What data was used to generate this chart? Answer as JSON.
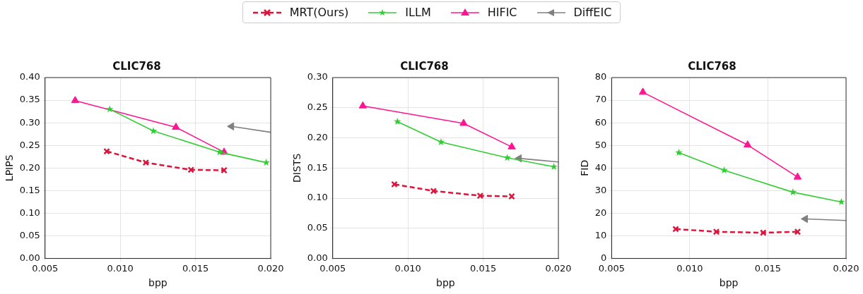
{
  "chart_data": [
    {
      "type": "line",
      "title": "CLIC768",
      "xlabel": "bpp",
      "ylabel": "LPIPS",
      "legend": "top",
      "grid": true,
      "xlim": [
        0.005,
        0.02
      ],
      "xticks": [
        {
          "value": 0.005,
          "label": "0.005"
        },
        {
          "value": 0.01,
          "label": "0.010"
        },
        {
          "value": 0.015,
          "label": "0.015"
        },
        {
          "value": 0.02,
          "label": "0.020"
        }
      ],
      "ylim": [
        0,
        0.4
      ],
      "yticks": [
        {
          "value": 0,
          "label": "0.00"
        },
        {
          "value": 0.05,
          "label": "0.05"
        },
        {
          "value": 0.1,
          "label": "0.10"
        },
        {
          "value": 0.15,
          "label": "0.15"
        },
        {
          "value": 0.2,
          "label": "0.20"
        },
        {
          "value": 0.25,
          "label": "0.25"
        },
        {
          "value": 0.3,
          "label": "0.30"
        },
        {
          "value": 0.35,
          "label": "0.35"
        },
        {
          "value": 0.4,
          "label": "0.40"
        }
      ],
      "series": [
        {
          "name": "MRT(Ours)",
          "color": "#dc143c",
          "marker": "cross",
          "line_style": "dashed",
          "x": [
            0.0091,
            0.0117,
            0.0147,
            0.0169
          ],
          "values": [
            0.237,
            0.212,
            0.196,
            0.195
          ]
        },
        {
          "name": "ILLM",
          "color": "#32cd32",
          "marker": "star",
          "line_style": "solid",
          "x": [
            0.0093,
            0.0122,
            0.0166,
            0.0197
          ],
          "values": [
            0.33,
            0.282,
            0.235,
            0.212
          ]
        },
        {
          "name": "HIFIC",
          "color": "#ff1493",
          "marker": "triangle",
          "line_style": "solid",
          "x": [
            0.007,
            0.0137,
            0.0169
          ],
          "values": [
            0.349,
            0.29,
            0.235
          ]
        },
        {
          "name": "DiffEIC",
          "color": "#808080",
          "marker": "triangle",
          "line_style": "solid",
          "x": [
            0.0174,
            0.02
          ],
          "values": [
            0.292,
            0.279
          ]
        }
      ]
    },
    {
      "type": "line",
      "title": "CLIC768",
      "xlabel": "bpp",
      "ylabel": "DISTS",
      "grid": true,
      "xlim": [
        0.005,
        0.02
      ],
      "xticks": [
        {
          "value": 0.005,
          "label": "0.005"
        },
        {
          "value": 0.01,
          "label": "0.010"
        },
        {
          "value": 0.015,
          "label": "0.015"
        },
        {
          "value": 0.02,
          "label": "0.020"
        }
      ],
      "ylim": [
        0,
        0.3
      ],
      "yticks": [
        {
          "value": 0,
          "label": "0.00"
        },
        {
          "value": 0.05,
          "label": "0.05"
        },
        {
          "value": 0.1,
          "label": "0.10"
        },
        {
          "value": 0.15,
          "label": "0.15"
        },
        {
          "value": 0.2,
          "label": "0.20"
        },
        {
          "value": 0.25,
          "label": "0.25"
        },
        {
          "value": 0.3,
          "label": "0.30"
        }
      ],
      "series": [
        {
          "color": "#dc143c",
          "marker": "cross",
          "line_style": "dashed",
          "x": [
            0.0091,
            0.0117,
            0.0148,
            0.0169
          ],
          "values": [
            0.123,
            0.112,
            0.104,
            0.103
          ]
        },
        {
          "color": "#32cd32",
          "marker": "star",
          "line_style": "solid",
          "x": [
            0.0093,
            0.0122,
            0.0166,
            0.0197
          ],
          "values": [
            0.227,
            0.193,
            0.167,
            0.152
          ]
        },
        {
          "color": "#ff1493",
          "marker": "triangle",
          "line_style": "solid",
          "x": [
            0.007,
            0.0137,
            0.0169
          ],
          "values": [
            0.253,
            0.224,
            0.185
          ]
        },
        {
          "color": "#808080",
          "marker": "triangle",
          "line_style": "solid",
          "x": [
            0.0174,
            0.02
          ],
          "values": [
            0.166,
            0.16
          ]
        }
      ]
    },
    {
      "type": "line",
      "title": "CLIC768",
      "xlabel": "bpp",
      "ylabel": "FID",
      "grid": true,
      "xlim": [
        0.005,
        0.02
      ],
      "xticks": [
        {
          "value": 0.005,
          "label": "0.005"
        },
        {
          "value": 0.01,
          "label": "0.010"
        },
        {
          "value": 0.015,
          "label": "0.015"
        },
        {
          "value": 0.02,
          "label": "0.020"
        }
      ],
      "ylim": [
        0,
        80
      ],
      "yticks": [
        0,
        10,
        20,
        30,
        40,
        50,
        60,
        70,
        80
      ],
      "series": [
        {
          "color": "#dc143c",
          "marker": "cross",
          "line_style": "dashed",
          "x": [
            0.0091,
            0.0117,
            0.0147,
            0.0169
          ],
          "values": [
            13,
            11.8,
            11.4,
            11.8
          ]
        },
        {
          "color": "#32cd32",
          "marker": "star",
          "line_style": "solid",
          "x": [
            0.0093,
            0.0122,
            0.0166,
            0.0197
          ],
          "values": [
            46.8,
            39,
            29.3,
            25
          ]
        },
        {
          "color": "#ff1493",
          "marker": "triangle",
          "line_style": "solid",
          "x": [
            0.007,
            0.0137,
            0.0169
          ],
          "values": [
            73.5,
            50.2,
            36
          ]
        },
        {
          "color": "#808080",
          "marker": "triangle",
          "line_style": "solid",
          "x": [
            0.0174,
            0.02
          ],
          "values": [
            17.5,
            16.8
          ]
        }
      ]
    }
  ]
}
